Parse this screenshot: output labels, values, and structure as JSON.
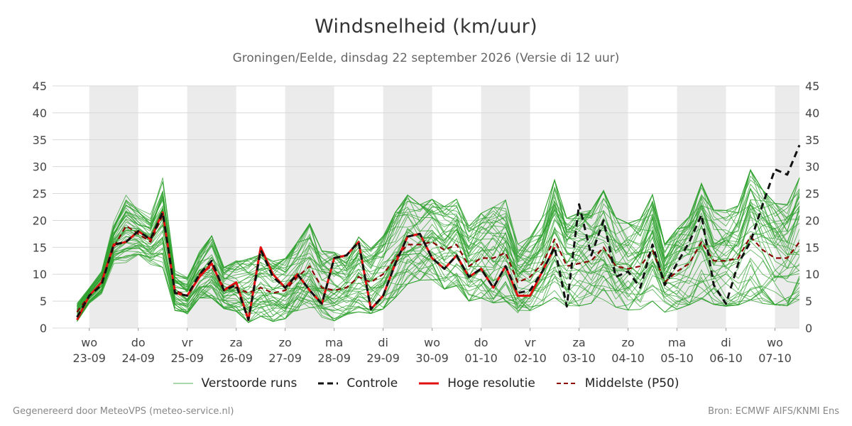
{
  "title": "Windsnelheid (km/uur)",
  "subtitle": "Groningen/Eelde, dinsdag 22 september 2026 (Versie di 12 uur)",
  "footer_left": "Gegenereerd door MeteoVPS (meteo-service.nl)",
  "footer_right": "Bron: ECMWF AIFS/KNMI Ens",
  "colors": {
    "ensemble": "#2ca02c",
    "control": "#111111",
    "hires": "#e01010",
    "median": "#8b0000",
    "weekend_band": "#ebebeb",
    "grid": "#d8d8d8"
  },
  "legend": [
    {
      "label": "Verstoorde runs",
      "style": "ensemble"
    },
    {
      "label": "Controle",
      "style": "control"
    },
    {
      "label": "Hoge resolutie",
      "style": "hires"
    },
    {
      "label": "Middelste (P50)",
      "style": "median"
    }
  ],
  "chart_data": {
    "type": "line",
    "ylim": [
      0,
      45
    ],
    "yticks": [
      0,
      5,
      10,
      15,
      20,
      25,
      30,
      35,
      40,
      45
    ],
    "y_axis_both_sides": true,
    "xlim_days": [
      -0.75,
      14.5
    ],
    "x_ticks": [
      {
        "day": "wo",
        "date": "23-09"
      },
      {
        "day": "do",
        "date": "24-09"
      },
      {
        "day": "vr",
        "date": "25-09"
      },
      {
        "day": "za",
        "date": "26-09"
      },
      {
        "day": "zo",
        "date": "27-09"
      },
      {
        "day": "ma",
        "date": "28-09"
      },
      {
        "day": "di",
        "date": "29-09"
      },
      {
        "day": "wo",
        "date": "30-09"
      },
      {
        "day": "do",
        "date": "01-10"
      },
      {
        "day": "vr",
        "date": "02-10"
      },
      {
        "day": "za",
        "date": "03-10"
      },
      {
        "day": "zo",
        "date": "04-10"
      },
      {
        "day": "ma",
        "date": "05-10"
      },
      {
        "day": "di",
        "date": "06-10"
      },
      {
        "day": "wo",
        "date": "07-10"
      }
    ],
    "shaded_bands_days": [
      [
        0,
        1
      ],
      [
        2,
        3
      ],
      [
        4,
        5
      ],
      [
        6,
        7
      ],
      [
        8,
        9
      ],
      [
        10,
        11
      ],
      [
        12,
        13
      ],
      [
        14,
        14.5
      ]
    ],
    "series": [
      {
        "name": "Hoge resolutie",
        "t": [
          -0.25,
          0,
          0.25,
          0.5,
          0.75,
          1,
          1.25,
          1.5,
          1.75,
          2,
          2.25,
          2.5,
          2.75,
          3,
          3.25,
          3.5,
          3.75,
          4,
          4.25,
          4.5,
          4.75,
          5,
          5.25,
          5.5,
          5.75,
          6,
          6.25,
          6.5,
          6.75,
          7,
          7.25,
          7.5,
          7.75,
          8,
          8.25,
          8.5,
          8.75,
          9,
          9.25,
          9.5
        ],
        "values": [
          1.5,
          6,
          8.5,
          15.5,
          16,
          18,
          16.5,
          21.5,
          6.5,
          6,
          9.5,
          12,
          7,
          8.5,
          1.5,
          15,
          10,
          7.5,
          10,
          7,
          4.5,
          13,
          13.5,
          16,
          3.5,
          6,
          12,
          17,
          17.5,
          13,
          11,
          13.5,
          9.5,
          11,
          7.5,
          11.5,
          6,
          6,
          10.5,
          15
        ]
      },
      {
        "name": "Controle",
        "t": [
          -0.25,
          0,
          0.25,
          0.5,
          0.75,
          1,
          1.25,
          1.5,
          1.75,
          2,
          2.25,
          2.5,
          2.75,
          3,
          3.25,
          3.5,
          3.75,
          4,
          4.25,
          4.5,
          4.75,
          5,
          5.25,
          5.5,
          5.75,
          6,
          6.25,
          6.5,
          6.75,
          7,
          7.25,
          7.5,
          7.75,
          8,
          8.25,
          8.5,
          8.75,
          9,
          9.25,
          9.5,
          9.75,
          10,
          10.25,
          10.5,
          10.75,
          11,
          11.25,
          11.5,
          11.75,
          12,
          12.25,
          12.5,
          12.75,
          13,
          13.25,
          13.5,
          13.75,
          14,
          14.25,
          14.5
        ],
        "values": [
          2,
          6,
          8,
          15.5,
          16,
          18,
          16.5,
          21.5,
          6.5,
          6,
          10,
          12.5,
          7,
          8,
          1.5,
          14.5,
          9.5,
          7.5,
          10,
          7,
          4.5,
          13,
          13.5,
          16,
          3.5,
          6,
          12,
          17,
          17.5,
          13,
          11,
          13.5,
          9.5,
          11,
          7.5,
          11.5,
          6.5,
          7,
          10.5,
          15,
          4,
          23,
          13.5,
          20,
          9.5,
          10.5,
          7.5,
          15.5,
          8,
          12,
          16,
          21,
          8,
          4.5,
          12,
          16,
          23,
          29.5,
          28.5,
          34
        ]
      },
      {
        "name": "Middelste (P50)",
        "t": [
          -0.25,
          0,
          0.25,
          0.5,
          0.75,
          1,
          1.25,
          1.5,
          1.75,
          2,
          2.25,
          2.5,
          2.75,
          3,
          3.25,
          3.5,
          3.75,
          4,
          4.25,
          4.5,
          4.75,
          5,
          5.25,
          5.5,
          5.75,
          6,
          6.25,
          6.5,
          6.75,
          7,
          7.25,
          7.5,
          7.75,
          8,
          8.25,
          8.5,
          8.75,
          9,
          9.25,
          9.5,
          9.75,
          10,
          10.25,
          10.5,
          10.75,
          11,
          11.25,
          11.5,
          11.75,
          12,
          12.25,
          12.5,
          12.75,
          13,
          13.25,
          13.5,
          13.75,
          14,
          14.25,
          14.5
        ],
        "values": [
          3,
          6,
          8.5,
          15,
          19,
          17.5,
          16,
          21,
          7,
          6,
          10,
          11.5,
          7.5,
          7.5,
          6.5,
          7.5,
          6.5,
          7,
          9.5,
          11.5,
          7.5,
          7,
          7.5,
          9.5,
          8.5,
          10,
          13,
          15.5,
          15.5,
          16,
          14.5,
          15.5,
          11.5,
          13,
          13,
          14,
          8.5,
          9.5,
          12,
          16.5,
          11.5,
          12,
          12.5,
          15,
          11.5,
          11,
          11.5,
          14.5,
          8.5,
          10.5,
          12,
          16,
          12.5,
          12.5,
          13,
          17,
          14.5,
          13,
          13,
          16
        ]
      }
    ],
    "ensemble_members": {
      "name": "Verstoorde runs",
      "count": 50,
      "t_start": -0.25,
      "t_step": 0.25,
      "t_end": 14.5,
      "p10": [
        1.2,
        4.6,
        6.5,
        12.4,
        12.9,
        14.0,
        12.7,
        13.2,
        4.1,
        3.4,
        6.6,
        6.9,
        4.5,
        4.2,
        2.4,
        3.5,
        2.5,
        3.0,
        4.7,
        5.6,
        3.4,
        2.8,
        3.7,
        4.6,
        4.1,
        5.1,
        7.5,
        10.1,
        10.5,
        10.7,
        9.0,
        9.7,
        6.6,
        7.4,
        6.7,
        7.1,
        4.3,
        4.8,
        6.2,
        8.2,
        5.9,
        6.1,
        6.6,
        7.6,
        5.8,
        5.2,
        5.4,
        7.3,
        4.4,
        5.2,
        6.2,
        7.9,
        6.4,
        6.1,
        6.4,
        8.0,
        7.0,
        6.5,
        6.3,
        7.9
      ],
      "p90": [
        4.6,
        7.5,
        10.5,
        19.4,
        24.2,
        21.6,
        20.0,
        26.1,
        9.8,
        8.6,
        13.2,
        15.8,
        10.4,
        11.4,
        11.5,
        12.3,
        11.1,
        11.6,
        14.5,
        17.6,
        12.9,
        12.6,
        11.8,
        15.3,
        13.4,
        15.5,
        19.7,
        22.8,
        21.3,
        22.2,
        20.8,
        22.1,
        17.3,
        19.5,
        20.4,
        21.6,
        14.1,
        15.3,
        18.7,
        25.0,
        18.5,
        19.4,
        19.9,
        23.2,
        18.6,
        17.6,
        18.3,
        22.5,
        14.1,
        16.7,
        18.8,
        24.4,
        19.9,
        19.8,
        20.6,
        26.6,
        23.2,
        21.0,
        20.8,
        25.3
      ]
    }
  }
}
